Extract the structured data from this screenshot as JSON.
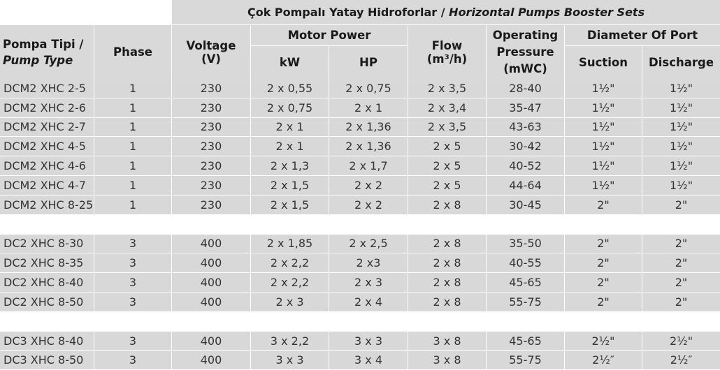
{
  "title": {
    "tr": "Çok Pompalı Yatay Hidroforlar /",
    "en": "Horizontal Pumps Booster Sets"
  },
  "headers": {
    "pump_type_tr": "Pompa Tipi /",
    "pump_type_en": "Pump Type",
    "phase": "Phase",
    "voltage": "Voltage",
    "voltage_unit": "(V)",
    "motor_power": "Motor Power",
    "kw": "kW",
    "hp": "HP",
    "flow": "Flow",
    "flow_unit": "(m³/h)",
    "pressure_1": "Operating",
    "pressure_2": "Pressure",
    "pressure_3": "(mWC)",
    "diameter": "Diameter Of Port",
    "suction": "Suction",
    "discharge": "Discharge"
  },
  "groups": [
    {
      "rows": [
        [
          "DCM2 XHC 2-5",
          "1",
          "230",
          "2 x 0,55",
          "2 x 0,75",
          "2 x 3,5",
          "28-40",
          "1½\"",
          "1½\""
        ],
        [
          "DCM2 XHC 2-6",
          "1",
          "230",
          "2 x 0,75",
          "2 x 1",
          "2 x 3,4",
          "35-47",
          "1½\"",
          "1½\""
        ],
        [
          "DCM2 XHC 2-7",
          "1",
          "230",
          "2 x 1",
          "2 x 1,36",
          "2 x 3,5",
          "43-63",
          "1½\"",
          "1½\""
        ],
        [
          "DCM2 XHC 4-5",
          "1",
          "230",
          "2 x 1",
          "2 x 1,36",
          "2 x 5",
          "30-42",
          "1½\"",
          "1½\""
        ],
        [
          "DCM2 XHC 4-6",
          "1",
          "230",
          "2 x 1,3",
          "2 x 1,7",
          "2 x 5",
          "40-52",
          "1½\"",
          "1½\""
        ],
        [
          "DCM2 XHC 4-7",
          "1",
          "230",
          "2 x 1,5",
          "2 x 2",
          "2 x 5",
          "44-64",
          "1½\"",
          "1½\""
        ],
        [
          "DCM2 XHC 8-25",
          "1",
          "230",
          "2 x 1,5",
          "2 x 2",
          "2 x 8",
          "30-45",
          "2\"",
          "2\""
        ]
      ]
    },
    {
      "rows": [
        [
          "DC2 XHC 8-30",
          "3",
          "400",
          "2 x 1,85",
          "2 x 2,5",
          "2 x 8",
          "35-50",
          "2\"",
          "2\""
        ],
        [
          "DC2 XHC 8-35",
          "3",
          "400",
          "2 x 2,2",
          "2 x3",
          "2 x 8",
          "40-55",
          "2\"",
          "2\""
        ],
        [
          "DC2 XHC 8-40",
          "3",
          "400",
          "2 x 2,2",
          "2 x 3",
          "2 x 8",
          "45-65",
          "2\"",
          "2\""
        ],
        [
          "DC2 XHC 8-50",
          "3",
          "400",
          "2 x 3",
          "2 x 4",
          "2 x 8",
          "55-75",
          "2\"",
          "2\""
        ]
      ]
    },
    {
      "rows": [
        [
          "DC3 XHC 8-40",
          "3",
          "400",
          "3 x 2,2",
          "3 x 3",
          "3 x 8",
          "45-65",
          "2½\"",
          "2½\""
        ],
        [
          "DC3 XHC 8-50",
          "3",
          "400",
          "3 x 3",
          "3 x 4",
          "3 x 8",
          "55-75",
          "2½″",
          "2½″"
        ]
      ]
    }
  ]
}
